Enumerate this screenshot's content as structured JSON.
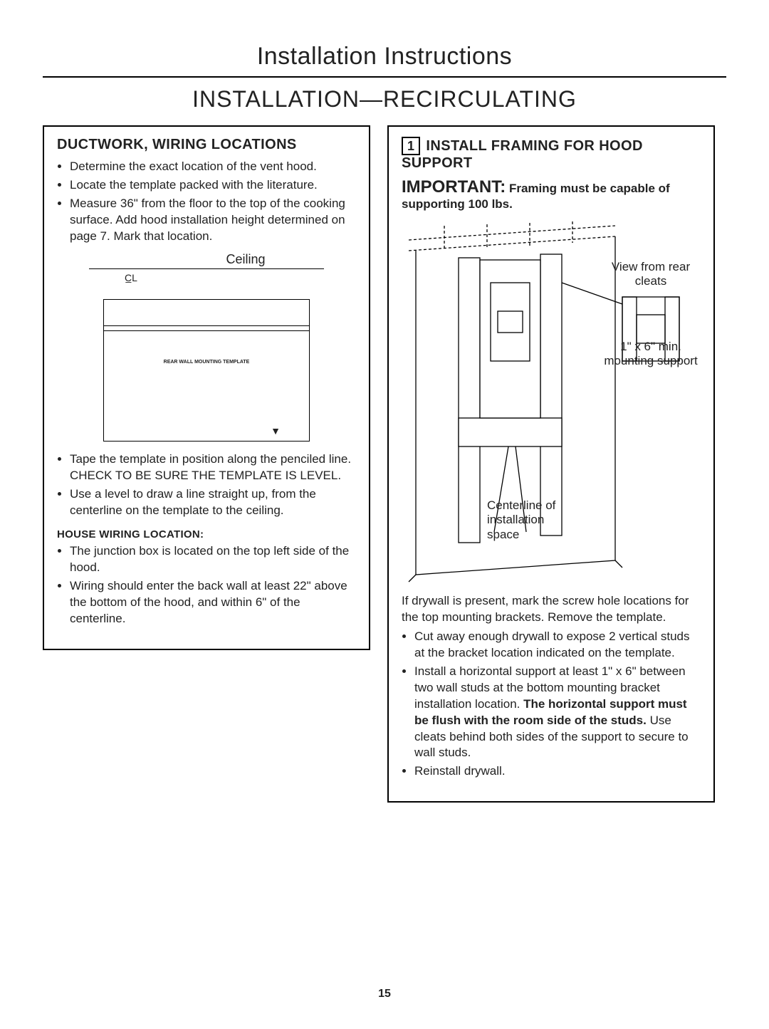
{
  "page": {
    "title": "Installation Instructions",
    "section": "INSTALLATION—RECIRCULATING",
    "number": "15"
  },
  "left": {
    "heading": "DUCTWORK, WIRING LOCATIONS",
    "bullets_top": [
      "Determine the exact location of the vent hood.",
      "Locate the template packed with the literature.",
      "Measure 36\" from the floor to the top of the cooking surface. Add hood installation height determined on page 7. Mark that location."
    ],
    "diagram": {
      "ceiling_label": "Ceiling",
      "cl_mark": "C̲L",
      "template_toptext": "",
      "mounting_template": "REAR WALL\nMOUNTING TEMPLATE"
    },
    "bullets_mid": [
      "Tape the template in position along the penciled line. CHECK TO BE SURE THE TEMPLATE IS LEVEL.",
      "Use a level to draw a line straight up, from the centerline on the template to the ceiling."
    ],
    "house_wiring_heading": "HOUSE WIRING LOCATION:",
    "bullets_house": [
      "The junction box is located on the top left side of the hood.",
      "Wiring should enter the back wall at least 22\" above the bottom of the hood, and within 6\" of the centerline."
    ]
  },
  "right": {
    "step_number": "1",
    "heading": "INSTALL FRAMING FOR HOOD SUPPORT",
    "important_lead": "IMPORTANT:",
    "important_body": "Framing must be capable of supporting 100 lbs.",
    "diagram": {
      "view_label": "View from rear cleats",
      "mount_label": "1\" x 6\" min. mounting support",
      "centerline_label": "Centerline of\ninstallation\nspace"
    },
    "intro_para": "If drywall is present, mark the screw hole locations for the top mounting brackets. Remove the template.",
    "bullets": [
      "Cut away enough drywall to expose 2 vertical studs at the bracket location indicated on the template.",
      "Install a horizontal support at least 1\" x 6\" between two wall studs at the bottom mounting bracket installation location. <b>The horizontal support must be flush with the room side of the studs.</b> Use cleats behind both sides of the support to secure to wall studs.",
      "Reinstall drywall."
    ]
  },
  "colors": {
    "text": "#222222",
    "rule": "#000000",
    "background": "#ffffff"
  }
}
